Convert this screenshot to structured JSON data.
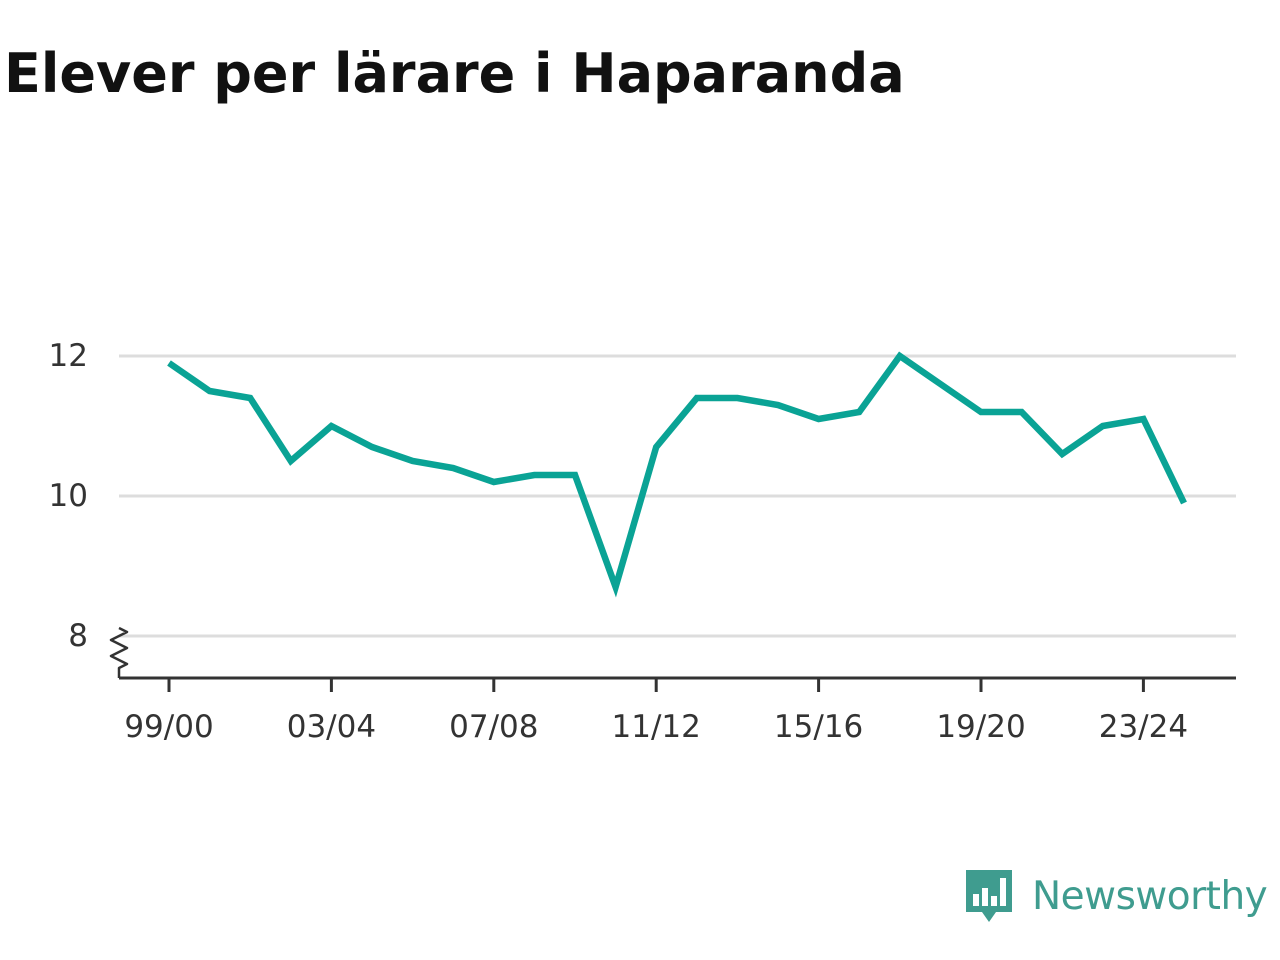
{
  "title": "Elever per lärare i Haparanda",
  "brand": {
    "name": "Newsworthy",
    "icon": "newsworthy-logo-icon"
  },
  "colors": {
    "line": "#0aa395",
    "grid": "#dddddd",
    "axis": "#333333",
    "brand": "#3f9c8f"
  },
  "chart_data": {
    "type": "line",
    "title": "Elever per lärare i Haparanda",
    "xlabel": "",
    "ylabel": "",
    "x": [
      "99/00",
      "00/01",
      "01/02",
      "02/03",
      "03/04",
      "04/05",
      "05/06",
      "06/07",
      "07/08",
      "08/09",
      "09/10",
      "10/11",
      "11/12",
      "12/13",
      "13/14",
      "14/15",
      "15/16",
      "16/17",
      "17/18",
      "18/19",
      "19/20",
      "20/21",
      "21/22",
      "22/23",
      "23/24",
      "24/25"
    ],
    "series": [
      {
        "values": [
          11.9,
          11.5,
          11.4,
          10.5,
          11.0,
          10.7,
          10.5,
          10.4,
          10.2,
          10.3,
          10.3,
          8.7,
          10.7,
          11.4,
          11.4,
          11.3,
          11.1,
          11.2,
          12.0,
          11.6,
          11.2,
          11.2,
          10.6,
          11.0,
          11.1,
          9.9
        ]
      }
    ],
    "xticks": [
      "99/00",
      "03/04",
      "07/08",
      "11/12",
      "15/16",
      "19/20",
      "23/24"
    ],
    "yticks": [
      8,
      10,
      12
    ],
    "ylim": [
      7.4,
      12.8
    ],
    "grid": true,
    "axis_break": true,
    "legend": "none"
  }
}
